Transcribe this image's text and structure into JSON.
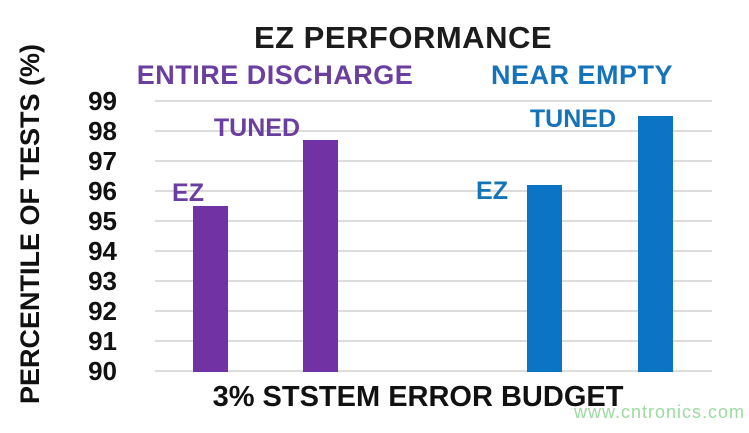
{
  "watermark": "www.cntronics.com",
  "chart_data": {
    "type": "bar",
    "title": "EZ PERFORMANCE",
    "xlabel": "3% STSTEM ERROR BUDGET",
    "ylabel": "PERCENTILE OF TESTS (%)",
    "ylim": [
      90,
      99
    ],
    "yticks": [
      90,
      91,
      92,
      93,
      94,
      95,
      96,
      97,
      98,
      99
    ],
    "grid": true,
    "legend_position": "none",
    "groups": [
      {
        "label": "ENTIRE DISCHARGE",
        "bar_color": "#7133a3",
        "text_color": "#6b3fa0",
        "bars": [
          {
            "label": "EZ",
            "value": 95.5
          },
          {
            "label": "TUNED",
            "value": 97.7
          }
        ]
      },
      {
        "label": "NEAR EMPTY",
        "bar_color": "#0b74c4",
        "text_color": "#1573ba",
        "bars": [
          {
            "label": "EZ",
            "value": 96.2
          },
          {
            "label": "TUNED",
            "value": 98.5
          }
        ]
      }
    ]
  },
  "colors": {
    "grid": "#dcdcdc",
    "title": "#1c1c1c",
    "watermark": "#9adb9f"
  }
}
